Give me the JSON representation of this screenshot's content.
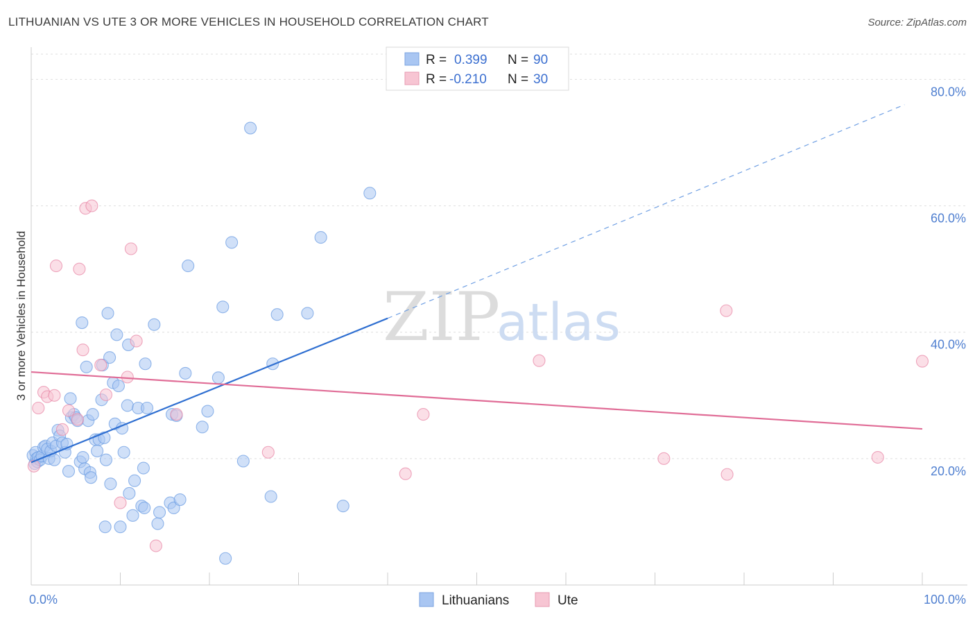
{
  "header": {
    "title": "LITHUANIAN VS UTE 3 OR MORE VEHICLES IN HOUSEHOLD CORRELATION CHART",
    "source": "Source: ZipAtlas.com"
  },
  "watermark": {
    "zip": "ZIP",
    "atlas": "atlas"
  },
  "legend": {
    "rows": [
      {
        "r_label": "R =",
        "r_value": "0.399",
        "n_label": "N =",
        "n_value": "90",
        "color": "#a9c6f2",
        "stroke": "#7aa3e0"
      },
      {
        "r_label": "R =",
        "r_value": "-0.210",
        "n_label": "N =",
        "n_value": "30",
        "color": "#f7c5d3",
        "stroke": "#e79ab2"
      }
    ]
  },
  "bottom_legend": [
    {
      "label": "Lithuanians",
      "color": "#a9c6f2",
      "stroke": "#7aa3e0"
    },
    {
      "label": "Ute",
      "color": "#f7c5d3",
      "stroke": "#e79ab2"
    }
  ],
  "chart_data": {
    "type": "scatter",
    "title": "LITHUANIAN VS UTE 3 OR MORE VEHICLES IN HOUSEHOLD CORRELATION CHART",
    "xlabel": "",
    "ylabel": "3 or more Vehicles in Household",
    "xlim": [
      0,
      100
    ],
    "ylim": [
      0,
      84
    ],
    "x_tick_labels": [
      "0.0%",
      "100.0%"
    ],
    "y_ticks": [
      20,
      40,
      60,
      80
    ],
    "y_tick_labels": [
      "20.0%",
      "40.0%",
      "60.0%",
      "80.0%"
    ],
    "grid": true,
    "legend_position": "top-center",
    "series": [
      {
        "name": "Lithuanians",
        "color": "#6f9fe3",
        "fill": "#a9c6f2",
        "trend": {
          "x": [
            0,
            40
          ],
          "y": [
            19.4,
            42.2
          ],
          "extend_to_x": 98,
          "extend_to_y": 76
        },
        "points": [
          [
            0.2,
            20.5
          ],
          [
            0.4,
            19.2
          ],
          [
            0.5,
            21.0
          ],
          [
            0.6,
            20.0
          ],
          [
            0.7,
            19.5
          ],
          [
            0.8,
            20.2
          ],
          [
            1.0,
            19.8
          ],
          [
            1.2,
            20.4
          ],
          [
            1.4,
            21.8
          ],
          [
            1.6,
            22.0
          ],
          [
            1.8,
            21.5
          ],
          [
            2.0,
            20.0
          ],
          [
            2.2,
            21.2
          ],
          [
            2.4,
            22.5
          ],
          [
            2.6,
            19.8
          ],
          [
            2.8,
            22.0
          ],
          [
            3.0,
            24.5
          ],
          [
            3.2,
            23.6
          ],
          [
            3.5,
            22.5
          ],
          [
            3.8,
            21.0
          ],
          [
            4.0,
            22.3
          ],
          [
            4.2,
            18.0
          ],
          [
            4.4,
            29.5
          ],
          [
            4.5,
            26.5
          ],
          [
            4.8,
            27.0
          ],
          [
            5.0,
            26.5
          ],
          [
            5.2,
            26.0
          ],
          [
            5.5,
            19.5
          ],
          [
            5.7,
            41.5
          ],
          [
            5.8,
            20.2
          ],
          [
            6.0,
            18.4
          ],
          [
            6.2,
            34.5
          ],
          [
            6.4,
            26.0
          ],
          [
            6.6,
            17.8
          ],
          [
            6.7,
            17.0
          ],
          [
            6.9,
            27.0
          ],
          [
            7.2,
            23.0
          ],
          [
            7.4,
            21.2
          ],
          [
            7.6,
            23.0
          ],
          [
            7.9,
            29.3
          ],
          [
            8.0,
            34.8
          ],
          [
            8.2,
            23.3
          ],
          [
            8.3,
            9.2
          ],
          [
            8.4,
            19.8
          ],
          [
            8.6,
            43.0
          ],
          [
            8.8,
            36.0
          ],
          [
            8.9,
            16.0
          ],
          [
            9.2,
            32.0
          ],
          [
            9.4,
            25.5
          ],
          [
            9.6,
            39.6
          ],
          [
            9.8,
            31.5
          ],
          [
            10.0,
            9.2
          ],
          [
            10.2,
            24.8
          ],
          [
            10.4,
            21.0
          ],
          [
            10.8,
            28.4
          ],
          [
            10.9,
            38.0
          ],
          [
            11.0,
            14.5
          ],
          [
            11.4,
            11.0
          ],
          [
            11.6,
            16.5
          ],
          [
            12.0,
            28.0
          ],
          [
            12.4,
            12.5
          ],
          [
            12.6,
            18.5
          ],
          [
            12.7,
            12.2
          ],
          [
            12.8,
            35.0
          ],
          [
            13.0,
            28.0
          ],
          [
            13.8,
            41.2
          ],
          [
            14.2,
            9.7
          ],
          [
            14.4,
            11.5
          ],
          [
            15.6,
            13.0
          ],
          [
            15.8,
            27.0
          ],
          [
            16.0,
            12.2
          ],
          [
            16.3,
            26.8
          ],
          [
            16.7,
            13.5
          ],
          [
            17.3,
            33.5
          ],
          [
            17.6,
            50.5
          ],
          [
            19.2,
            25.0
          ],
          [
            19.8,
            27.5
          ],
          [
            21.0,
            32.8
          ],
          [
            21.5,
            44.0
          ],
          [
            21.8,
            4.2
          ],
          [
            22.5,
            54.2
          ],
          [
            23.8,
            19.6
          ],
          [
            24.6,
            72.3
          ],
          [
            26.9,
            14.0
          ],
          [
            27.1,
            35.0
          ],
          [
            27.6,
            42.8
          ],
          [
            31.0,
            43.0
          ],
          [
            32.5,
            55.0
          ],
          [
            35.0,
            12.5
          ],
          [
            38.0,
            62.0
          ]
        ]
      },
      {
        "name": "Ute",
        "color": "#e88aa8",
        "fill": "#f7c5d3",
        "trend": {
          "x": [
            0,
            100
          ],
          "y": [
            33.7,
            24.7
          ]
        },
        "points": [
          [
            0.3,
            18.8
          ],
          [
            0.8,
            28.0
          ],
          [
            1.4,
            30.5
          ],
          [
            1.8,
            29.8
          ],
          [
            2.6,
            30.0
          ],
          [
            2.8,
            50.5
          ],
          [
            3.5,
            24.6
          ],
          [
            4.2,
            27.6
          ],
          [
            5.2,
            26.2
          ],
          [
            5.4,
            50.0
          ],
          [
            5.8,
            37.2
          ],
          [
            6.1,
            59.6
          ],
          [
            6.8,
            60.0
          ],
          [
            7.8,
            34.8
          ],
          [
            8.4,
            30.1
          ],
          [
            10.0,
            13.0
          ],
          [
            10.8,
            32.9
          ],
          [
            11.2,
            53.2
          ],
          [
            11.8,
            38.6
          ],
          [
            14.0,
            6.2
          ],
          [
            16.3,
            27.0
          ],
          [
            26.6,
            21.0
          ],
          [
            42.0,
            17.6
          ],
          [
            44.0,
            27.0
          ],
          [
            57.0,
            35.5
          ],
          [
            71.0,
            20.0
          ],
          [
            78.0,
            43.4
          ],
          [
            78.1,
            17.5
          ],
          [
            95.0,
            20.2
          ],
          [
            100.0,
            35.4
          ]
        ]
      }
    ]
  }
}
